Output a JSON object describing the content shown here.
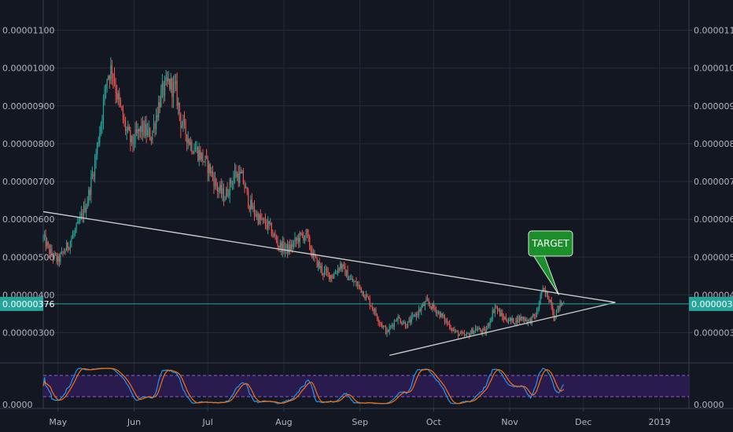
{
  "chart_data": {
    "type": "candlestick",
    "y_axis": {
      "ticks": [
        3e-06,
        4e-06,
        5e-06,
        6e-06,
        7e-06,
        8e-06,
        9e-06,
        1e-05,
        1.1e-05
      ],
      "tick_labels": [
        "0.00000300",
        "0.00000400",
        "0.00000500",
        "0.00000600",
        "0.00000700",
        "0.00000800",
        "0.00000900",
        "0.00001000",
        "0.00001100"
      ],
      "range": [
        2.2e-06,
        1.18e-05
      ]
    },
    "x_axis": {
      "labels": [
        "May",
        "Jun",
        "Jul",
        "Aug",
        "Sep",
        "Oct",
        "Nov",
        "Dec",
        "2019"
      ],
      "range_days": [
        -6,
        257
      ]
    },
    "current_price": {
      "value": 3.76e-06,
      "label": "0.00000376"
    },
    "ohlc_anchors": [
      {
        "d": -6,
        "p": 5.5e-06
      },
      {
        "d": -3,
        "p": 5.1e-06
      },
      {
        "d": 0,
        "p": 4.9e-06
      },
      {
        "d": 4,
        "p": 5.3e-06
      },
      {
        "d": 8,
        "p": 5.8e-06
      },
      {
        "d": 12,
        "p": 6.5e-06
      },
      {
        "d": 15,
        "p": 7.5e-06
      },
      {
        "d": 18,
        "p": 8.8e-06
      },
      {
        "d": 20,
        "p": 9.8e-06
      },
      {
        "d": 22,
        "p": 1e-05
      },
      {
        "d": 24,
        "p": 9.3e-06
      },
      {
        "d": 27,
        "p": 8.5e-06
      },
      {
        "d": 30,
        "p": 8e-06
      },
      {
        "d": 34,
        "p": 8.4e-06
      },
      {
        "d": 38,
        "p": 8.2e-06
      },
      {
        "d": 42,
        "p": 9.3e-06
      },
      {
        "d": 45,
        "p": 9.6e-06
      },
      {
        "d": 48,
        "p": 9.4e-06
      },
      {
        "d": 50,
        "p": 8.6e-06
      },
      {
        "d": 54,
        "p": 8e-06
      },
      {
        "d": 58,
        "p": 7.7e-06
      },
      {
        "d": 62,
        "p": 7.3e-06
      },
      {
        "d": 65,
        "p": 6.8e-06
      },
      {
        "d": 68,
        "p": 6.6e-06
      },
      {
        "d": 72,
        "p": 7.2e-06
      },
      {
        "d": 75,
        "p": 7.1e-06
      },
      {
        "d": 78,
        "p": 6.4e-06
      },
      {
        "d": 82,
        "p": 6e-06
      },
      {
        "d": 86,
        "p": 5.8e-06
      },
      {
        "d": 90,
        "p": 5.3e-06
      },
      {
        "d": 94,
        "p": 5.2e-06
      },
      {
        "d": 98,
        "p": 5.5e-06
      },
      {
        "d": 101,
        "p": 5.6e-06
      },
      {
        "d": 104,
        "p": 5e-06
      },
      {
        "d": 108,
        "p": 4.6e-06
      },
      {
        "d": 112,
        "p": 4.5e-06
      },
      {
        "d": 115,
        "p": 4.8e-06
      },
      {
        "d": 119,
        "p": 4.4e-06
      },
      {
        "d": 123,
        "p": 4.2e-06
      },
      {
        "d": 127,
        "p": 3.8e-06
      },
      {
        "d": 131,
        "p": 3.3e-06
      },
      {
        "d": 134,
        "p": 3e-06
      },
      {
        "d": 138,
        "p": 3.4e-06
      },
      {
        "d": 142,
        "p": 3.2e-06
      },
      {
        "d": 146,
        "p": 3.5e-06
      },
      {
        "d": 150,
        "p": 3.8e-06
      },
      {
        "d": 154,
        "p": 3.6e-06
      },
      {
        "d": 158,
        "p": 3.3e-06
      },
      {
        "d": 162,
        "p": 3e-06
      },
      {
        "d": 166,
        "p": 2.9e-06
      },
      {
        "d": 170,
        "p": 3.1e-06
      },
      {
        "d": 174,
        "p": 3e-06
      },
      {
        "d": 178,
        "p": 3.7e-06
      },
      {
        "d": 181,
        "p": 3.4e-06
      },
      {
        "d": 185,
        "p": 3.3e-06
      },
      {
        "d": 189,
        "p": 3.4e-06
      },
      {
        "d": 192,
        "p": 3.3e-06
      },
      {
        "d": 195,
        "p": 3.5e-06
      },
      {
        "d": 197,
        "p": 4.1e-06
      },
      {
        "d": 199,
        "p": 4e-06
      },
      {
        "d": 201,
        "p": 3.8e-06
      },
      {
        "d": 202,
        "p": 3.4e-06
      },
      {
        "d": 204,
        "p": 3.7e-06
      },
      {
        "d": 206,
        "p": 3.8e-06
      }
    ],
    "trendlines": [
      {
        "name": "resistance",
        "from": {
          "d": -6,
          "p": 6.2e-06
        },
        "to": {
          "d": 227,
          "p": 3.8e-06
        }
      },
      {
        "name": "support",
        "from": {
          "d": 135,
          "p": 2.4e-06
        },
        "to": {
          "d": 227,
          "p": 3.8e-06
        }
      }
    ],
    "annotation": {
      "label": "TARGET",
      "d": 204,
      "p": 4e-06
    },
    "oscillator": {
      "y_tick_label": "0.0000",
      "upper_band": 80,
      "lower_band": 20
    }
  }
}
